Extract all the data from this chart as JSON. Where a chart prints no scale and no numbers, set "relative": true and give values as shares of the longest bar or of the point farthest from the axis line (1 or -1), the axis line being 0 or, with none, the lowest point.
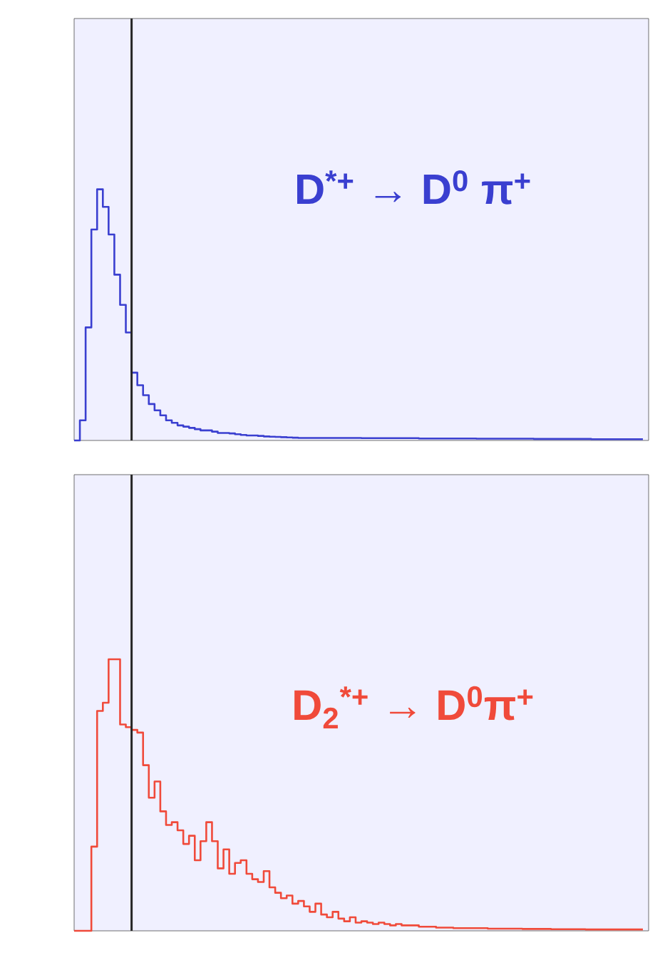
{
  "chart_data": [
    {
      "type": "step",
      "relative": true,
      "color": "#3a3fd0",
      "categories": [
        null,
        null,
        null,
        null,
        null,
        null,
        null,
        null,
        null,
        null,
        null,
        null,
        null,
        null,
        null,
        null,
        null,
        null,
        null,
        null,
        null,
        null,
        null,
        null,
        null,
        null,
        null,
        null,
        null,
        null,
        null,
        null,
        null,
        null,
        null,
        null,
        null,
        null,
        null,
        null,
        null,
        null,
        null,
        null,
        null,
        null,
        null,
        null,
        null,
        null,
        null,
        null,
        null,
        null,
        null,
        null,
        null,
        null,
        null,
        null,
        null,
        null,
        null,
        null,
        null,
        null,
        null,
        null,
        null,
        null,
        null,
        null,
        null,
        null,
        null,
        null,
        null,
        null,
        null,
        null,
        null,
        null,
        null,
        null,
        null,
        null,
        null,
        null,
        null,
        null,
        null,
        null,
        null,
        null,
        null,
        null,
        null,
        null,
        null,
        null
      ],
      "values": [
        0.0,
        0.08,
        0.45,
        0.84,
        1.0,
        0.93,
        0.82,
        0.66,
        0.54,
        0.43,
        0.27,
        0.22,
        0.18,
        0.145,
        0.12,
        0.1,
        0.08,
        0.07,
        0.06,
        0.055,
        0.05,
        0.045,
        0.04,
        0.04,
        0.035,
        0.03,
        0.03,
        0.028,
        0.025,
        0.022,
        0.02,
        0.02,
        0.018,
        0.016,
        0.015,
        0.014,
        0.013,
        0.012,
        0.011,
        0.01,
        0.01,
        0.01,
        0.01,
        0.01,
        0.01,
        0.01,
        0.01,
        0.01,
        0.01,
        0.01,
        0.009,
        0.009,
        0.009,
        0.009,
        0.009,
        0.009,
        0.009,
        0.009,
        0.009,
        0.009,
        0.008,
        0.008,
        0.008,
        0.008,
        0.008,
        0.008,
        0.008,
        0.008,
        0.008,
        0.008,
        0.007,
        0.007,
        0.007,
        0.007,
        0.007,
        0.007,
        0.007,
        0.007,
        0.007,
        0.007,
        0.006,
        0.006,
        0.006,
        0.006,
        0.006,
        0.006,
        0.006,
        0.006,
        0.006,
        0.006,
        0.005,
        0.005,
        0.005,
        0.005,
        0.005,
        0.005,
        0.005,
        0.005,
        0.005,
        0.005
      ],
      "annotations": [
        "D$^{*+}$ → D$^{0}$ π$^{+}$"
      ]
    },
    {
      "type": "step",
      "relative": true,
      "color": "#f04a3a",
      "categories": [
        null,
        null,
        null,
        null,
        null,
        null,
        null,
        null,
        null,
        null,
        null,
        null,
        null,
        null,
        null,
        null,
        null,
        null,
        null,
        null,
        null,
        null,
        null,
        null,
        null,
        null,
        null,
        null,
        null,
        null,
        null,
        null,
        null,
        null,
        null,
        null,
        null,
        null,
        null,
        null,
        null,
        null,
        null,
        null,
        null,
        null,
        null,
        null,
        null,
        null,
        null,
        null,
        null,
        null,
        null,
        null,
        null,
        null,
        null,
        null,
        null,
        null,
        null,
        null,
        null,
        null,
        null,
        null,
        null,
        null,
        null,
        null,
        null,
        null,
        null,
        null,
        null,
        null,
        null,
        null,
        null,
        null,
        null,
        null,
        null,
        null,
        null,
        null,
        null,
        null,
        null,
        null,
        null,
        null,
        null,
        null,
        null,
        null,
        null,
        null
      ],
      "values": [
        0.0,
        0.0,
        0.0,
        0.31,
        0.81,
        0.84,
        1.0,
        1.0,
        0.76,
        0.75,
        0.74,
        0.73,
        0.61,
        0.49,
        0.55,
        0.44,
        0.39,
        0.4,
        0.37,
        0.32,
        0.35,
        0.26,
        0.33,
        0.4,
        0.33,
        0.23,
        0.3,
        0.21,
        0.25,
        0.26,
        0.21,
        0.19,
        0.18,
        0.22,
        0.16,
        0.14,
        0.12,
        0.13,
        0.1,
        0.11,
        0.09,
        0.07,
        0.1,
        0.06,
        0.05,
        0.07,
        0.045,
        0.035,
        0.05,
        0.03,
        0.035,
        0.03,
        0.025,
        0.03,
        0.025,
        0.02,
        0.025,
        0.02,
        0.02,
        0.02,
        0.015,
        0.015,
        0.015,
        0.012,
        0.012,
        0.012,
        0.01,
        0.01,
        0.01,
        0.01,
        0.01,
        0.01,
        0.008,
        0.008,
        0.008,
        0.008,
        0.008,
        0.008,
        0.007,
        0.007,
        0.007,
        0.007,
        0.007,
        0.006,
        0.006,
        0.006,
        0.006,
        0.006,
        0.006,
        0.005,
        0.005,
        0.005,
        0.005,
        0.005,
        0.005,
        0.005,
        0.005,
        0.005,
        0.005,
        0.005
      ],
      "annotations": [
        "D$_{2}$$^{*+}$ → D$^{0}$π$^{+}$"
      ]
    }
  ]
}
